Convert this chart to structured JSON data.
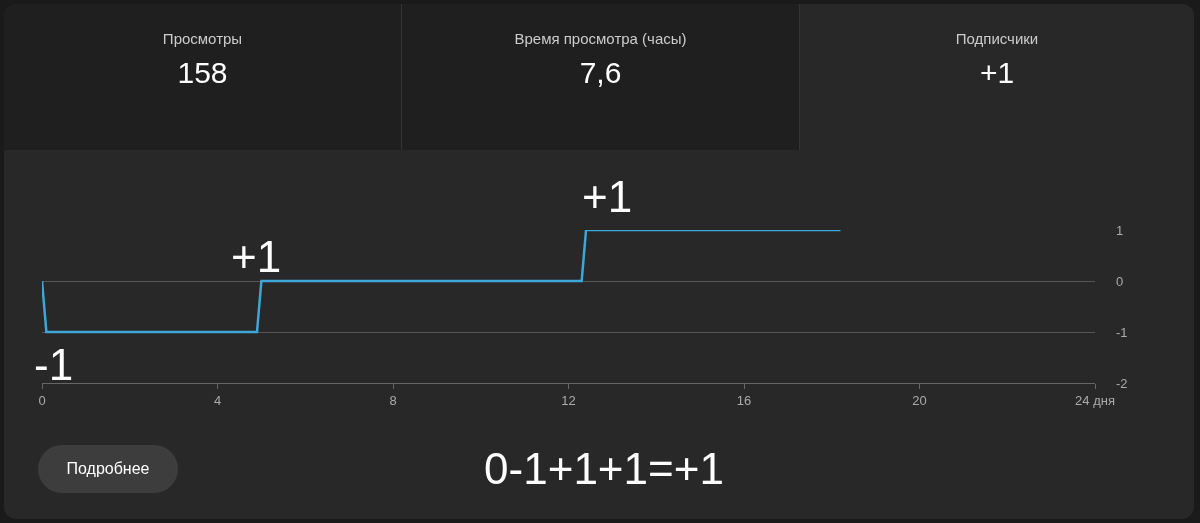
{
  "chart_data": {
    "type": "line",
    "x": [
      0,
      0.1,
      4.9,
      5,
      12.3,
      12.4,
      18.2
    ],
    "series": [
      {
        "color": "#3ea6d8",
        "values": [
          0,
          -1,
          -1,
          0,
          0,
          1,
          1
        ]
      }
    ],
    "xlim": [
      0,
      24
    ],
    "xticks": [
      0,
      4,
      8,
      12,
      16,
      20,
      {
        "value": 24,
        "label": "24 дня"
      }
    ],
    "ylim": [
      -2,
      1
    ],
    "yticks": [
      -2,
      -1,
      0,
      1
    ],
    "grid": "y",
    "legend": false,
    "marker": "none",
    "line_style": "solid",
    "annotations": [
      "Просмотры",
      "158",
      "Время просмотра (часы)",
      "7,6",
      "Подписчики",
      "+1",
      "Подробнее",
      "0-1+1+1=+1",
      "-1",
      "+1",
      "+1"
    ]
  }
}
